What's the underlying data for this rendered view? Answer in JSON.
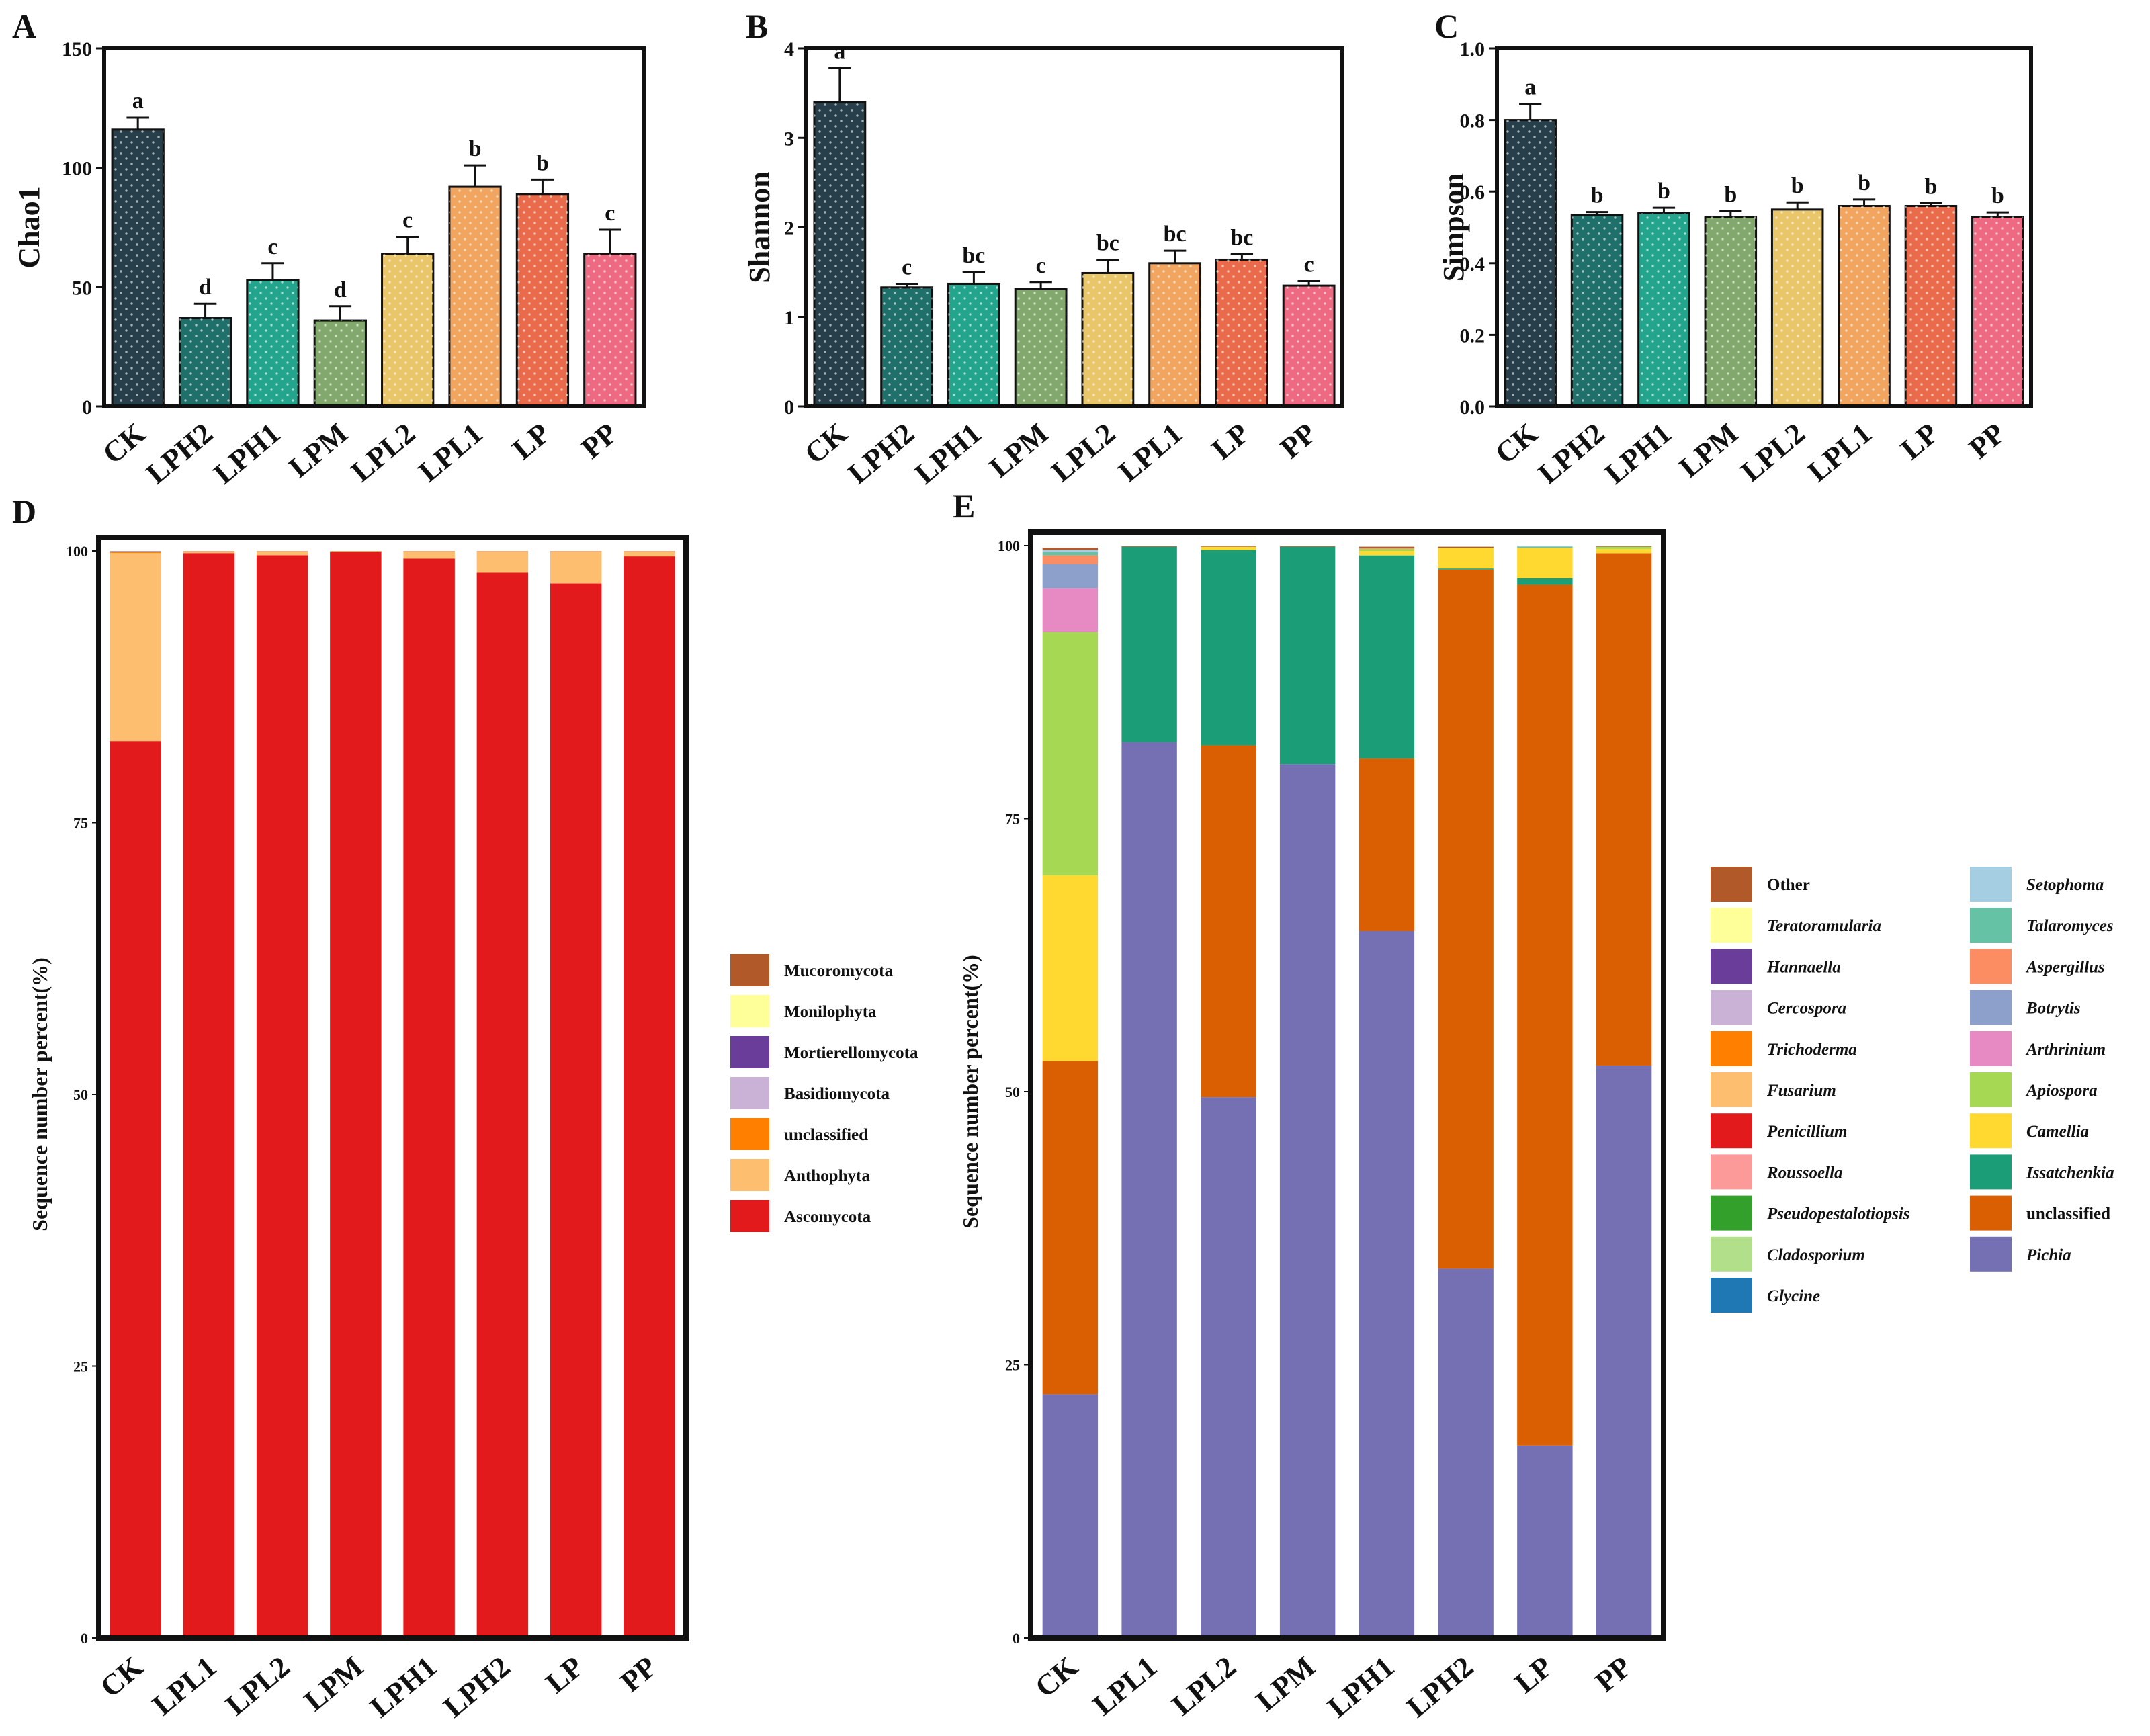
{
  "chart_data": [
    {
      "panel": "A",
      "type": "bar",
      "ylabel": "Chao1",
      "ylim": [
        0,
        150
      ],
      "yticks": [
        0,
        50,
        100,
        150
      ],
      "categories": [
        "CK",
        "LPH2",
        "LPH1",
        "LPM",
        "LPL2",
        "LPL1",
        "LP",
        "PP"
      ],
      "values": [
        116,
        37,
        53,
        36,
        64,
        92,
        89,
        64
      ],
      "errors": [
        5,
        6,
        7,
        6,
        7,
        9,
        6,
        10
      ],
      "significance": [
        "a",
        "d",
        "c",
        "d",
        "c",
        "b",
        "b",
        "c"
      ],
      "colors": [
        "#263f4a",
        "#1f6f6a",
        "#23a58d",
        "#82a86d",
        "#e9c66a",
        "#f2a55f",
        "#ea6b4b",
        "#ee6a83"
      ]
    },
    {
      "panel": "B",
      "type": "bar",
      "ylabel": "Shannon",
      "ylim": [
        0,
        4
      ],
      "yticks": [
        0,
        1,
        2,
        3,
        4
      ],
      "categories": [
        "CK",
        "LPH2",
        "LPH1",
        "LPM",
        "LPL2",
        "LPL1",
        "LP",
        "PP"
      ],
      "values": [
        3.4,
        1.33,
        1.37,
        1.31,
        1.49,
        1.6,
        1.64,
        1.35
      ],
      "errors": [
        0.38,
        0.04,
        0.13,
        0.08,
        0.15,
        0.14,
        0.06,
        0.05
      ],
      "significance": [
        "a",
        "c",
        "bc",
        "c",
        "bc",
        "bc",
        "bc",
        "c"
      ],
      "colors": [
        "#263f4a",
        "#1f6f6a",
        "#23a58d",
        "#82a86d",
        "#e9c66a",
        "#f2a55f",
        "#ea6b4b",
        "#ee6a83"
      ]
    },
    {
      "panel": "C",
      "type": "bar",
      "ylabel": "Simpson",
      "ylim": [
        0,
        1.0
      ],
      "yticks": [
        "0.0",
        "0.2",
        "0.4",
        "0.6",
        "0.8",
        "1.0"
      ],
      "categories": [
        "CK",
        "LPH2",
        "LPH1",
        "LPM",
        "LPL2",
        "LPL1",
        "LP",
        "PP"
      ],
      "values": [
        0.8,
        0.535,
        0.54,
        0.53,
        0.55,
        0.56,
        0.56,
        0.53
      ],
      "errors": [
        0.045,
        0.008,
        0.015,
        0.015,
        0.02,
        0.018,
        0.008,
        0.012
      ],
      "significance": [
        "a",
        "b",
        "b",
        "b",
        "b",
        "b",
        "b",
        "b"
      ],
      "colors": [
        "#263f4a",
        "#1f6f6a",
        "#23a58d",
        "#82a86d",
        "#e9c66a",
        "#f2a55f",
        "#ea6b4b",
        "#ee6a83"
      ]
    },
    {
      "panel": "D",
      "type": "bar",
      "stacked": true,
      "ylabel": "Sequence number percent(%)",
      "ylim": [
        0,
        100
      ],
      "yticks": [
        0,
        25,
        50,
        75,
        100
      ],
      "categories": [
        "CK",
        "LPL1",
        "LPL2",
        "LPM",
        "LPH1",
        "LPH2",
        "LP",
        "PP"
      ],
      "legend": [
        "Mucoromycota",
        "Monilophyta",
        "Mortierellomycota",
        "Basidiomycota",
        "unclassified",
        "Anthophyta",
        "Ascomycota"
      ],
      "series": [
        {
          "name": "Ascomycota",
          "color": "#e31a1c",
          "values": [
            82.5,
            99.8,
            99.6,
            99.9,
            99.3,
            98.0,
            97.0,
            99.5
          ]
        },
        {
          "name": "Anthophyta",
          "color": "#fdbf6f",
          "values": [
            17.3,
            0.1,
            0.3,
            0.05,
            0.6,
            1.9,
            2.9,
            0.4
          ]
        },
        {
          "name": "unclassified",
          "color": "#ff7f00",
          "values": [
            0.1,
            0.05,
            0.05,
            0.03,
            0.05,
            0.05,
            0.05,
            0.05
          ]
        },
        {
          "name": "Basidiomycota",
          "color": "#cab2d6",
          "values": [
            0.05,
            0.02,
            0.02,
            0.01,
            0.02,
            0.02,
            0.02,
            0.02
          ]
        },
        {
          "name": "Mortierellomycota",
          "color": "#6a3d9a",
          "values": [
            0.02,
            0.01,
            0.01,
            0.0,
            0.01,
            0.01,
            0.01,
            0.01
          ]
        },
        {
          "name": "Monilophyta",
          "color": "#ffff99",
          "values": [
            0.02,
            0.01,
            0.01,
            0.0,
            0.01,
            0.01,
            0.01,
            0.01
          ]
        },
        {
          "name": "Mucoromycota",
          "color": "#b15928",
          "values": [
            0.01,
            0.01,
            0.01,
            0.01,
            0.01,
            0.01,
            0.01,
            0.01
          ]
        }
      ]
    },
    {
      "panel": "E",
      "type": "bar",
      "stacked": true,
      "ylabel": "Sequence number percent(%)",
      "ylim": [
        0,
        100
      ],
      "yticks": [
        0,
        25,
        50,
        75,
        100
      ],
      "categories": [
        "CK",
        "LPL1",
        "LPL2",
        "LPM",
        "LPH1",
        "LPH2",
        "LP",
        "PP"
      ],
      "legend_col1": [
        "Other",
        "Teratoramularia",
        "Hannaella",
        "Cercospora",
        "Trichoderma",
        "Fusarium",
        "Penicillium",
        "Roussoella",
        "Pseudopestalotiopsis",
        "Cladosporium",
        "Glycine"
      ],
      "legend_col2": [
        "Setophoma",
        "Talaromyces",
        "Aspergillus",
        "Botrytis",
        "Arthrinium",
        "Apiospora",
        "Camellia",
        "Issatchenkia",
        "unclassified",
        "Pichia"
      ],
      "legend_colors": {
        "Other": "#b15928",
        "Teratoramularia": "#ffff99",
        "Hannaella": "#6a3d9a",
        "Cercospora": "#cab2d6",
        "Trichoderma": "#ff7f00",
        "Fusarium": "#fdbf6f",
        "Penicillium": "#e31a1c",
        "Roussoella": "#fb9a99",
        "Pseudopestalotiopsis": "#33a02c",
        "Cladosporium": "#b2df8a",
        "Glycine": "#1f78b4",
        "Setophoma": "#a6cee3",
        "Talaromyces": "#66c2a5",
        "Aspergillus": "#fc8d62",
        "Botrytis": "#8da0cb",
        "Arthrinium": "#e78ac3",
        "Apiospora": "#a6d854",
        "Camellia": "#ffd92f",
        "Issatchenkia": "#1b9e77",
        "unclassified": "#d95f02",
        "Pichia": "#7570b3"
      },
      "series": [
        {
          "name": "Pichia",
          "values": [
            22.3,
            82.0,
            49.5,
            80.0,
            64.7,
            33.8,
            17.6,
            52.4
          ]
        },
        {
          "name": "unclassified",
          "values": [
            30.5,
            0.0,
            32.2,
            0.0,
            15.8,
            64.0,
            78.8,
            46.9
          ]
        },
        {
          "name": "Issatchenkia",
          "values": [
            0.0,
            17.9,
            17.9,
            19.9,
            18.6,
            0.1,
            0.6,
            0.0
          ]
        },
        {
          "name": "Camellia",
          "values": [
            17.0,
            0.0,
            0.3,
            0.0,
            0.4,
            1.9,
            2.8,
            0.4
          ]
        },
        {
          "name": "Apiospora",
          "values": [
            22.3,
            0.0,
            0.0,
            0.0,
            0.2,
            0.0,
            0.0,
            0.2
          ]
        },
        {
          "name": "Arthrinium",
          "values": [
            4.0,
            0.0,
            0.0,
            0.0,
            0.0,
            0.0,
            0.0,
            0.0
          ]
        },
        {
          "name": "Botrytis",
          "values": [
            2.2,
            0.0,
            0.0,
            0.0,
            0.0,
            0.0,
            0.0,
            0.0
          ]
        },
        {
          "name": "Aspergillus",
          "values": [
            0.8,
            0.0,
            0.0,
            0.0,
            0.1,
            0.0,
            0.0,
            0.0
          ]
        },
        {
          "name": "Talaromyces",
          "values": [
            0.3,
            0.0,
            0.0,
            0.0,
            0.0,
            0.0,
            0.1,
            0.0
          ]
        },
        {
          "name": "Setophoma",
          "values": [
            0.2,
            0.0,
            0.0,
            0.0,
            0.0,
            0.0,
            0.1,
            0.0
          ]
        },
        {
          "name": "Other",
          "values": [
            0.2,
            0.05,
            0.05,
            0.05,
            0.1,
            0.1,
            0.0,
            0.05
          ]
        }
      ]
    }
  ]
}
